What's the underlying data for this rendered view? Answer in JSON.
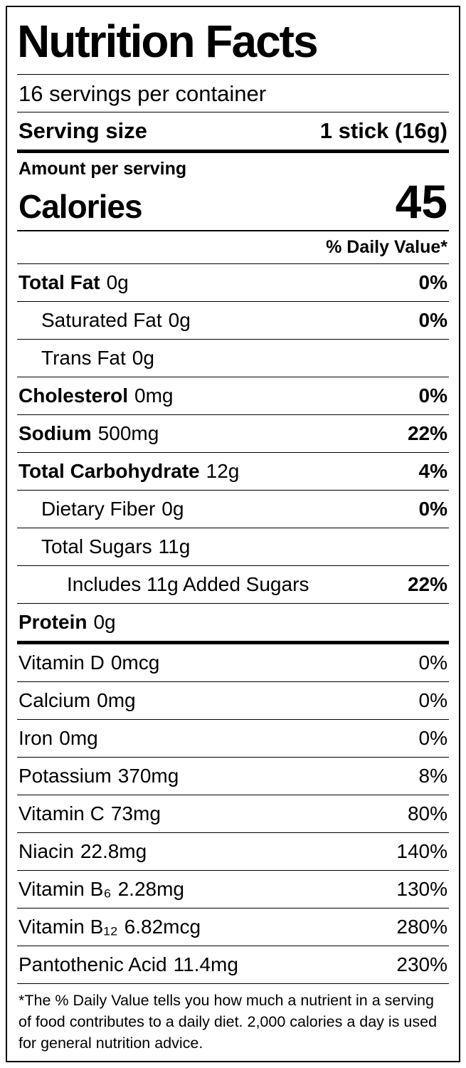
{
  "title": "Nutrition Facts",
  "servings_per_container": "16 servings per container",
  "serving_size": {
    "label": "Serving size",
    "value": "1 stick (16g)"
  },
  "amount_per_serving": "Amount per serving",
  "calories": {
    "label": "Calories",
    "value": "45"
  },
  "daily_value_header": "% Daily Value*",
  "nutrients": [
    {
      "name": "Total Fat",
      "amount": "0g",
      "dv": "0%"
    },
    {
      "name": "Saturated Fat",
      "amount": "0g",
      "dv": "0%"
    },
    {
      "name": "Trans Fat",
      "amount": "0g",
      "dv": ""
    },
    {
      "name": "Cholesterol",
      "amount": "0mg",
      "dv": "0%"
    },
    {
      "name": "Sodium",
      "amount": "500mg",
      "dv": "22%"
    },
    {
      "name": "Total Carbohydrate",
      "amount": "12g",
      "dv": "4%"
    },
    {
      "name": "Dietary Fiber",
      "amount": "0g",
      "dv": "0%"
    },
    {
      "name": "Total Sugars",
      "amount": "11g",
      "dv": ""
    },
    {
      "name": "Includes 11g Added Sugars",
      "amount": "",
      "dv": "22%"
    },
    {
      "name": "Protein",
      "amount": "0g",
      "dv": ""
    }
  ],
  "vitamins": [
    {
      "name": "Vitamin D",
      "amount": "0mcg",
      "dv": "0%"
    },
    {
      "name": "Calcium",
      "amount": "0mg",
      "dv": "0%"
    },
    {
      "name": "Iron",
      "amount": "0mg",
      "dv": "0%"
    },
    {
      "name": "Potassium",
      "amount": "370mg",
      "dv": "8%"
    },
    {
      "name": "Vitamin C",
      "amount": "73mg",
      "dv": "80%"
    },
    {
      "name": "Niacin",
      "amount": "22.8mg",
      "dv": "140%"
    },
    {
      "name": "Vitamin B₆",
      "amount": "2.28mg",
      "dv": "130%"
    },
    {
      "name": "Vitamin B₁₂",
      "amount": "6.82mcg",
      "dv": "280%"
    },
    {
      "name": "Pantothenic Acid",
      "amount": "11.4mg",
      "dv": "230%"
    }
  ],
  "footnote": "*The % Daily Value tells you how much a nutrient in a serving of food contributes to a daily diet. 2,000 calories a day is used for general nutrition advice."
}
